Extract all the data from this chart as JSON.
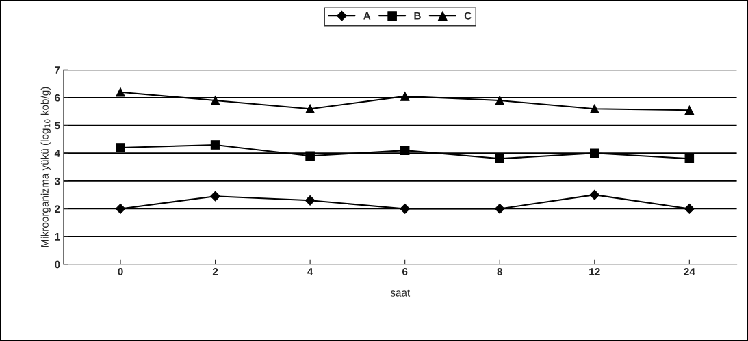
{
  "chart_data": {
    "type": "line",
    "xlabel": "saat",
    "ylabel": "Mikroorganizma yükü (log$_{10}$ kob/g)",
    "categories": [
      "0",
      "2",
      "4",
      "6",
      "8",
      "12",
      "24"
    ],
    "series": [
      {
        "name": "A",
        "color": "#000000",
        "marker": "diamond",
        "values": [
          2.0,
          2.45,
          2.3,
          2.0,
          2.0,
          2.5,
          2.0
        ]
      },
      {
        "name": "B",
        "color": "#000000",
        "marker": "square",
        "values": [
          4.2,
          4.3,
          3.9,
          4.1,
          3.8,
          4.0,
          3.8
        ]
      },
      {
        "name": "C",
        "color": "#000000",
        "marker": "triangle",
        "values": [
          6.2,
          5.9,
          5.6,
          6.05,
          5.9,
          5.6,
          5.55
        ]
      }
    ],
    "ylim": [
      0,
      7
    ],
    "yticks": [
      0,
      1,
      2,
      3,
      4,
      5,
      6,
      7
    ],
    "grid": "y",
    "legend": "top",
    "line_style": "solid"
  }
}
